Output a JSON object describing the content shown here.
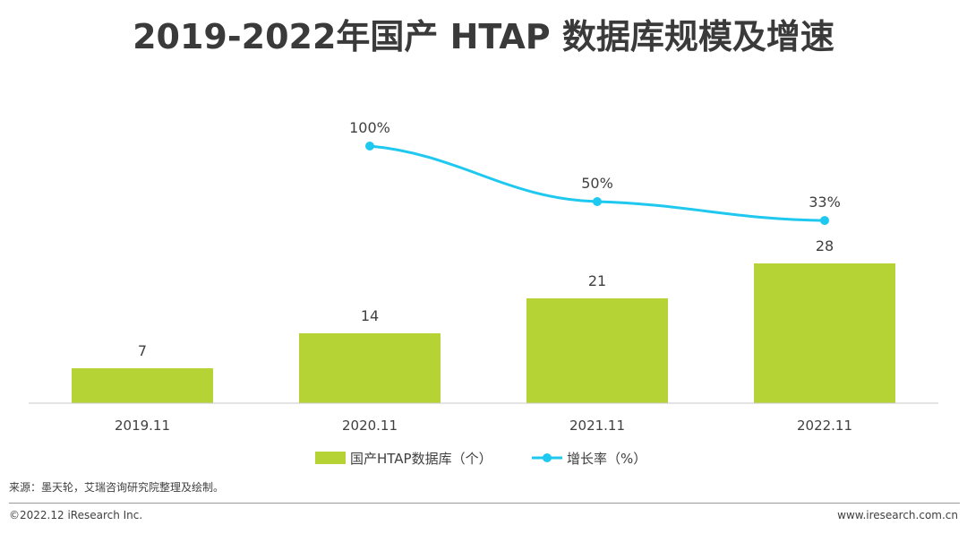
{
  "title": "2019-2022年国产 HTAP 数据库规模及增速",
  "chart_data": {
    "type": "bar",
    "categories": [
      "2019.11",
      "2020.11",
      "2021.11",
      "2022.11"
    ],
    "series": [
      {
        "name": "国产HTAP数据库（个）",
        "kind": "bar",
        "values": [
          7,
          14,
          21,
          28
        ],
        "labels": [
          "7",
          "14",
          "21",
          "28"
        ]
      },
      {
        "name": "增长率（%）",
        "kind": "line",
        "values": [
          null,
          100,
          50,
          33
        ],
        "labels": [
          null,
          "100%",
          "50%",
          "33%"
        ]
      }
    ],
    "ylim_bar": [
      0,
      50
    ],
    "ylim_line": [
      0,
      150
    ],
    "grid": false,
    "legend": "bottom"
  },
  "colors": {
    "bar": "#b5d334",
    "line": "#1ec8ef",
    "axis": "#c8c8c8",
    "text": "#404040"
  },
  "source": "来源：墨天轮，艾瑞咨询研究院整理及绘制。",
  "footer": {
    "copyright": "©2022.12 iResearch Inc.",
    "website": "www.iresearch.com.cn"
  }
}
